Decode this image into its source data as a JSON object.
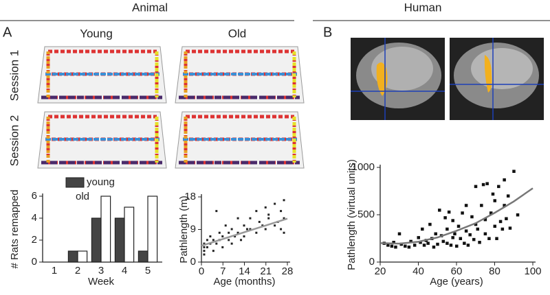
{
  "figure": {
    "left_header": "Animal",
    "right_header": "Human",
    "panel_a": "A",
    "panel_b": "B",
    "column_young": "Young",
    "column_old": "Old",
    "row_session1": "Session 1",
    "row_session2": "Session 2"
  },
  "chart_data": [
    {
      "type": "bar",
      "x_label": "Week",
      "y_label": "# Rats remapped",
      "categories": [
        "1",
        "2",
        "3",
        "4",
        "5"
      ],
      "series": [
        {
          "name": "young",
          "color": "#444444",
          "values": [
            0,
            1,
            4,
            4,
            1
          ]
        },
        {
          "name": "old",
          "color": "#ffffff",
          "values": [
            0,
            1,
            6,
            5,
            6
          ]
        }
      ],
      "ylim": [
        0,
        6
      ],
      "yticks": [
        0,
        2,
        4,
        6
      ]
    },
    {
      "type": "scatter",
      "x_label": "Age (months)",
      "y_label": "Pathlength (m)",
      "x": [
        1,
        1,
        1,
        1,
        2,
        2,
        3,
        3,
        4,
        4,
        5,
        5,
        6,
        6,
        7,
        7,
        8,
        9,
        9,
        10,
        10,
        11,
        12,
        12,
        13,
        14,
        14,
        15,
        16,
        16,
        18,
        18,
        19,
        20,
        21,
        21,
        22,
        22,
        24,
        24,
        25,
        26,
        26,
        27,
        27,
        27
      ],
      "values": [
        3,
        4,
        5,
        2,
        6,
        4,
        5,
        7,
        3,
        6,
        14,
        5,
        8,
        6,
        7,
        4,
        10,
        6,
        8,
        9,
        5,
        7,
        12,
        8,
        6,
        10,
        7,
        9,
        12,
        9,
        14,
        8,
        11,
        10,
        15,
        9,
        12,
        13,
        16,
        10,
        11,
        14,
        9,
        17,
        12,
        8
      ],
      "color": "#222222",
      "fit": {
        "x": [
          0,
          28
        ],
        "values": [
          4.5,
          12
        ],
        "color": "#999999"
      },
      "xlim": [
        0,
        28
      ],
      "xticks": [
        0,
        7,
        14,
        21,
        28
      ],
      "ylim": [
        0,
        18
      ],
      "yticks": [
        0,
        9,
        18
      ]
    },
    {
      "type": "scatter",
      "x_label": "Age (years)",
      "y_label": "Pathlength (virtual units)",
      "x": [
        22,
        24,
        26,
        27,
        28,
        30,
        31,
        33,
        35,
        36,
        38,
        40,
        41,
        42,
        43,
        44,
        45,
        46,
        47,
        48,
        49,
        50,
        51,
        52,
        53,
        54,
        55,
        55,
        56,
        57,
        58,
        58,
        59,
        60,
        61,
        62,
        63,
        64,
        65,
        65,
        66,
        67,
        68,
        69,
        70,
        70,
        71,
        72,
        73,
        74,
        75,
        75,
        76,
        77,
        78,
        79,
        80,
        80,
        81,
        82,
        83,
        84,
        85,
        85,
        86,
        87,
        88,
        90,
        92
      ],
      "values": [
        200,
        180,
        170,
        210,
        160,
        300,
        190,
        170,
        160,
        220,
        180,
        260,
        210,
        350,
        180,
        230,
        200,
        400,
        250,
        160,
        300,
        190,
        550,
        280,
        220,
        470,
        200,
        350,
        530,
        180,
        260,
        440,
        300,
        170,
        380,
        250,
        520,
        200,
        330,
        600,
        180,
        290,
        480,
        240,
        400,
        800,
        350,
        210,
        600,
        820,
        300,
        450,
        830,
        250,
        520,
        720,
        380,
        650,
        250,
        800,
        430,
        350,
        870,
        600,
        460,
        700,
        360,
        960,
        500
      ],
      "color": "#111111",
      "fit": {
        "x": [
          20,
          30,
          40,
          50,
          60,
          70,
          80,
          90,
          100
        ],
        "values": [
          200,
          195,
          215,
          260,
          330,
          410,
          520,
          640,
          780
        ],
        "color": "#777777"
      },
      "xlim": [
        20,
        100
      ],
      "xticks": [
        20,
        40,
        60,
        80,
        100
      ],
      "ylim": [
        0,
        1000
      ],
      "yticks": [
        0,
        500,
        1000
      ]
    }
  ]
}
